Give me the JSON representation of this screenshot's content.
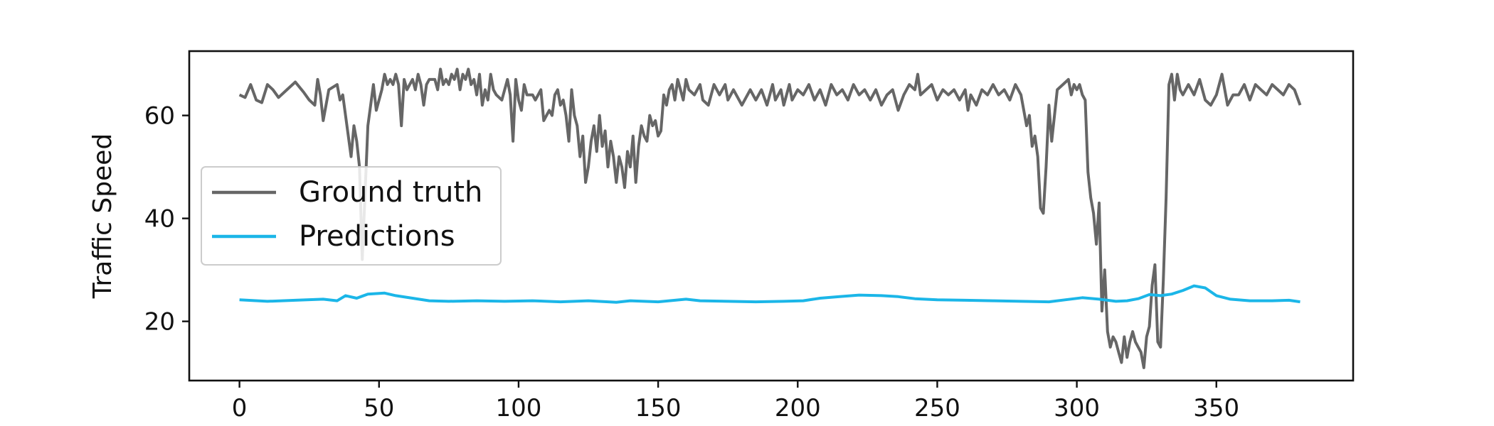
{
  "chart_data": {
    "type": "line",
    "title": "",
    "xlabel": "",
    "ylabel": "Traffic Speed",
    "xlim": [
      -18,
      399
    ],
    "ylim": [
      8.5,
      72.5
    ],
    "xticks": [
      0,
      50,
      100,
      150,
      200,
      250,
      300,
      350
    ],
    "yticks": [
      20,
      40,
      60
    ],
    "grid": false,
    "legend": {
      "placement": "center-left"
    },
    "series": [
      {
        "name": "Ground truth",
        "color": "#666666",
        "points": [
          [
            0,
            64
          ],
          [
            2,
            63.5
          ],
          [
            4,
            66
          ],
          [
            6,
            63
          ],
          [
            8,
            62.5
          ],
          [
            10,
            66
          ],
          [
            12,
            65
          ],
          [
            14,
            63.5
          ],
          [
            17,
            65
          ],
          [
            20,
            66.5
          ],
          [
            23,
            64.5
          ],
          [
            25,
            63
          ],
          [
            27,
            62
          ],
          [
            28,
            67
          ],
          [
            29,
            64
          ],
          [
            30,
            59
          ],
          [
            32,
            65
          ],
          [
            35,
            66
          ],
          [
            36,
            63
          ],
          [
            37,
            64
          ],
          [
            38,
            60
          ],
          [
            39,
            56
          ],
          [
            40,
            52
          ],
          [
            41,
            58
          ],
          [
            42,
            55
          ],
          [
            43,
            50
          ],
          [
            44,
            32
          ],
          [
            45,
            45
          ],
          [
            46,
            58
          ],
          [
            47,
            62
          ],
          [
            48,
            66
          ],
          [
            49,
            61
          ],
          [
            51,
            65
          ],
          [
            52,
            68
          ],
          [
            53,
            66
          ],
          [
            54,
            67
          ],
          [
            55,
            66
          ],
          [
            56,
            68
          ],
          [
            57,
            66
          ],
          [
            58,
            58
          ],
          [
            59,
            67
          ],
          [
            60,
            65
          ],
          [
            61,
            66
          ],
          [
            62,
            67
          ],
          [
            63,
            65
          ],
          [
            64,
            68
          ],
          [
            65,
            66
          ],
          [
            66,
            62
          ],
          [
            67,
            66
          ],
          [
            68,
            67
          ],
          [
            70,
            67
          ],
          [
            71,
            65
          ],
          [
            72,
            69
          ],
          [
            73,
            66
          ],
          [
            74,
            67
          ],
          [
            75,
            66
          ],
          [
            76,
            68
          ],
          [
            77,
            67
          ],
          [
            78,
            69
          ],
          [
            79,
            65
          ],
          [
            80,
            68
          ],
          [
            81,
            67
          ],
          [
            82,
            69
          ],
          [
            83,
            66
          ],
          [
            84,
            67
          ],
          [
            85,
            64
          ],
          [
            86,
            68
          ],
          [
            87,
            62
          ],
          [
            88,
            65
          ],
          [
            89,
            63
          ],
          [
            90,
            68
          ],
          [
            91,
            65
          ],
          [
            92,
            64
          ],
          [
            94,
            63
          ],
          [
            96,
            67
          ],
          [
            97,
            64
          ],
          [
            98,
            55
          ],
          [
            99,
            67
          ],
          [
            100,
            63
          ],
          [
            101,
            61
          ],
          [
            102,
            66
          ],
          [
            103,
            64
          ],
          [
            105,
            64
          ],
          [
            106,
            63
          ],
          [
            108,
            65
          ],
          [
            109,
            59
          ],
          [
            110,
            60
          ],
          [
            111,
            61
          ],
          [
            112,
            60
          ],
          [
            113,
            64
          ],
          [
            114,
            65
          ],
          [
            115,
            62
          ],
          [
            116,
            63
          ],
          [
            117,
            60
          ],
          [
            118,
            55
          ],
          [
            119,
            65
          ],
          [
            120,
            60
          ],
          [
            121,
            58
          ],
          [
            122,
            52
          ],
          [
            123,
            56
          ],
          [
            124,
            47
          ],
          [
            125,
            50
          ],
          [
            126,
            55
          ],
          [
            127,
            58
          ],
          [
            128,
            53
          ],
          [
            129,
            60
          ],
          [
            130,
            54
          ],
          [
            131,
            57
          ],
          [
            132,
            50
          ],
          [
            133,
            55
          ],
          [
            134,
            52
          ],
          [
            135,
            47
          ],
          [
            136,
            52
          ],
          [
            137,
            50
          ],
          [
            138,
            46
          ],
          [
            139,
            53
          ],
          [
            140,
            50
          ],
          [
            141,
            56
          ],
          [
            142,
            47
          ],
          [
            143,
            54
          ],
          [
            144,
            58
          ],
          [
            145,
            56
          ],
          [
            146,
            55
          ],
          [
            147,
            60
          ],
          [
            148,
            58
          ],
          [
            149,
            59
          ],
          [
            150,
            56
          ],
          [
            151,
            57
          ],
          [
            152,
            64
          ],
          [
            153,
            62
          ],
          [
            154,
            65
          ],
          [
            155,
            66
          ],
          [
            156,
            63
          ],
          [
            157,
            67
          ],
          [
            158,
            65
          ],
          [
            159,
            63
          ],
          [
            160,
            67
          ],
          [
            161,
            65
          ],
          [
            163,
            64
          ],
          [
            165,
            66
          ],
          [
            166,
            63
          ],
          [
            168,
            62
          ],
          [
            170,
            66
          ],
          [
            172,
            64
          ],
          [
            174,
            66
          ],
          [
            175,
            63
          ],
          [
            177,
            65
          ],
          [
            180,
            62
          ],
          [
            183,
            65
          ],
          [
            185,
            63
          ],
          [
            187,
            65
          ],
          [
            189,
            62
          ],
          [
            191,
            66
          ],
          [
            192,
            63
          ],
          [
            194,
            65
          ],
          [
            195,
            62
          ],
          [
            197,
            66
          ],
          [
            198,
            63
          ],
          [
            200,
            65
          ],
          [
            202,
            64
          ],
          [
            204,
            66
          ],
          [
            206,
            63
          ],
          [
            208,
            65
          ],
          [
            210,
            62
          ],
          [
            212,
            66
          ],
          [
            214,
            64
          ],
          [
            216,
            65
          ],
          [
            218,
            63
          ],
          [
            220,
            66
          ],
          [
            222,
            64
          ],
          [
            224,
            65
          ],
          [
            226,
            63
          ],
          [
            228,
            65
          ],
          [
            230,
            62
          ],
          [
            232,
            64
          ],
          [
            234,
            65
          ],
          [
            236,
            61
          ],
          [
            238,
            64
          ],
          [
            240,
            66
          ],
          [
            242,
            65
          ],
          [
            243,
            68
          ],
          [
            244,
            64
          ],
          [
            246,
            65
          ],
          [
            248,
            66
          ],
          [
            250,
            63
          ],
          [
            252,
            65
          ],
          [
            254,
            64
          ],
          [
            256,
            65
          ],
          [
            258,
            63
          ],
          [
            260,
            65
          ],
          [
            261,
            61
          ],
          [
            262,
            64
          ],
          [
            264,
            62
          ],
          [
            266,
            65
          ],
          [
            268,
            64
          ],
          [
            270,
            66
          ],
          [
            272,
            64
          ],
          [
            274,
            65
          ],
          [
            276,
            63
          ],
          [
            278,
            66
          ],
          [
            280,
            64
          ],
          [
            282,
            58
          ],
          [
            283,
            60
          ],
          [
            284,
            54
          ],
          [
            285,
            56
          ],
          [
            286,
            52
          ],
          [
            287,
            42
          ],
          [
            288,
            41
          ],
          [
            289,
            50
          ],
          [
            290,
            62
          ],
          [
            291,
            55
          ],
          [
            292,
            60
          ],
          [
            293,
            65
          ],
          [
            295,
            66
          ],
          [
            297,
            67
          ],
          [
            298,
            64
          ],
          [
            299,
            66
          ],
          [
            300,
            65
          ],
          [
            301,
            66
          ],
          [
            302,
            64
          ],
          [
            303,
            63
          ],
          [
            304,
            49
          ],
          [
            305,
            44
          ],
          [
            306,
            41
          ],
          [
            307,
            35
          ],
          [
            308,
            43
          ],
          [
            309,
            22
          ],
          [
            310,
            30
          ],
          [
            311,
            18
          ],
          [
            312,
            15
          ],
          [
            313,
            17
          ],
          [
            314,
            16
          ],
          [
            315,
            14
          ],
          [
            316,
            12
          ],
          [
            317,
            17
          ],
          [
            318,
            13
          ],
          [
            319,
            16
          ],
          [
            320,
            18
          ],
          [
            321,
            16
          ],
          [
            322,
            15
          ],
          [
            323,
            14
          ],
          [
            324,
            11
          ],
          [
            325,
            17
          ],
          [
            326,
            19
          ],
          [
            327,
            27
          ],
          [
            328,
            31
          ],
          [
            329,
            16
          ],
          [
            330,
            15
          ],
          [
            331,
            28
          ],
          [
            332,
            44
          ],
          [
            333,
            66
          ],
          [
            334,
            68
          ],
          [
            335,
            63
          ],
          [
            336,
            68
          ],
          [
            337,
            65
          ],
          [
            338,
            64
          ],
          [
            340,
            66
          ],
          [
            342,
            64
          ],
          [
            344,
            67
          ],
          [
            346,
            63
          ],
          [
            348,
            62
          ],
          [
            350,
            64
          ],
          [
            352,
            68
          ],
          [
            354,
            62
          ],
          [
            356,
            64
          ],
          [
            358,
            64
          ],
          [
            360,
            66
          ],
          [
            362,
            63
          ],
          [
            364,
            66
          ],
          [
            366,
            65
          ],
          [
            368,
            64
          ],
          [
            370,
            66
          ],
          [
            372,
            65
          ],
          [
            374,
            64
          ],
          [
            376,
            66
          ],
          [
            378,
            65
          ],
          [
            380,
            62
          ]
        ]
      },
      {
        "name": "Predictions",
        "color": "#1bb6e8",
        "points": [
          [
            0,
            24.2
          ],
          [
            10,
            23.9
          ],
          [
            20,
            24.1
          ],
          [
            30,
            24.3
          ],
          [
            35,
            24.0
          ],
          [
            38,
            25.0
          ],
          [
            42,
            24.5
          ],
          [
            46,
            25.3
          ],
          [
            52,
            25.5
          ],
          [
            56,
            25.0
          ],
          [
            62,
            24.5
          ],
          [
            68,
            24.0
          ],
          [
            75,
            23.9
          ],
          [
            85,
            24.0
          ],
          [
            95,
            23.9
          ],
          [
            105,
            24.0
          ],
          [
            115,
            23.8
          ],
          [
            125,
            24.0
          ],
          [
            135,
            23.7
          ],
          [
            140,
            24.0
          ],
          [
            145,
            23.9
          ],
          [
            150,
            23.8
          ],
          [
            160,
            24.3
          ],
          [
            165,
            24.0
          ],
          [
            175,
            23.9
          ],
          [
            185,
            23.8
          ],
          [
            195,
            23.9
          ],
          [
            202,
            24.0
          ],
          [
            208,
            24.5
          ],
          [
            215,
            24.8
          ],
          [
            222,
            25.1
          ],
          [
            230,
            25.0
          ],
          [
            236,
            24.8
          ],
          [
            242,
            24.4
          ],
          [
            250,
            24.2
          ],
          [
            260,
            24.1
          ],
          [
            270,
            24.0
          ],
          [
            280,
            23.9
          ],
          [
            290,
            23.8
          ],
          [
            296,
            24.2
          ],
          [
            302,
            24.6
          ],
          [
            308,
            24.3
          ],
          [
            314,
            23.9
          ],
          [
            318,
            24.0
          ],
          [
            322,
            24.4
          ],
          [
            326,
            25.2
          ],
          [
            330,
            25.0
          ],
          [
            334,
            25.3
          ],
          [
            338,
            26.0
          ],
          [
            342,
            26.9
          ],
          [
            346,
            26.5
          ],
          [
            350,
            25.0
          ],
          [
            355,
            24.3
          ],
          [
            362,
            24.0
          ],
          [
            370,
            24.0
          ],
          [
            376,
            24.1
          ],
          [
            380,
            23.8
          ]
        ]
      }
    ]
  }
}
